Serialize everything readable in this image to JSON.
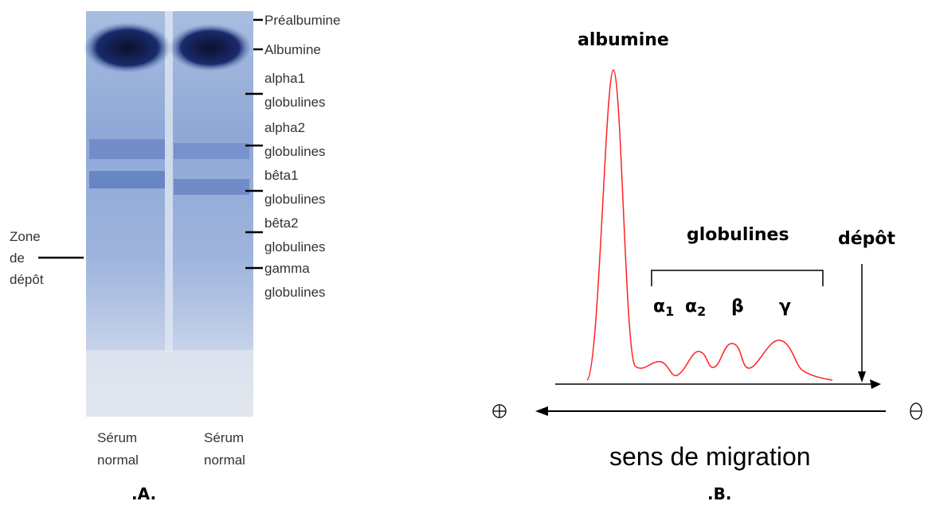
{
  "panel_a": {
    "gel_labels": [
      [
        "Préalbumine"
      ],
      [
        "Albumine"
      ],
      [
        "alpha1",
        "globulines"
      ],
      [
        "alpha2",
        "globulines"
      ],
      [
        "bêta1",
        "globulines"
      ],
      [
        "bêta2",
        "globulines"
      ],
      [
        "gamma",
        "globulines"
      ]
    ],
    "zone_label": [
      "Zone",
      "de",
      "dépôt"
    ],
    "lanes": [
      [
        "Sérum",
        "normal"
      ],
      [
        "Sérum",
        "normal"
      ]
    ],
    "caption": ".A."
  },
  "panel_b": {
    "peak_label": "albumine",
    "group_label": "globulines",
    "deposit_label": "dépôt",
    "fractions": [
      {
        "symbol": "α",
        "sub": "1"
      },
      {
        "symbol": "α",
        "sub": "2"
      },
      {
        "symbol": "β"
      },
      {
        "symbol": "γ"
      }
    ],
    "axis_label": "sens de migration",
    "caption": ".B."
  }
}
